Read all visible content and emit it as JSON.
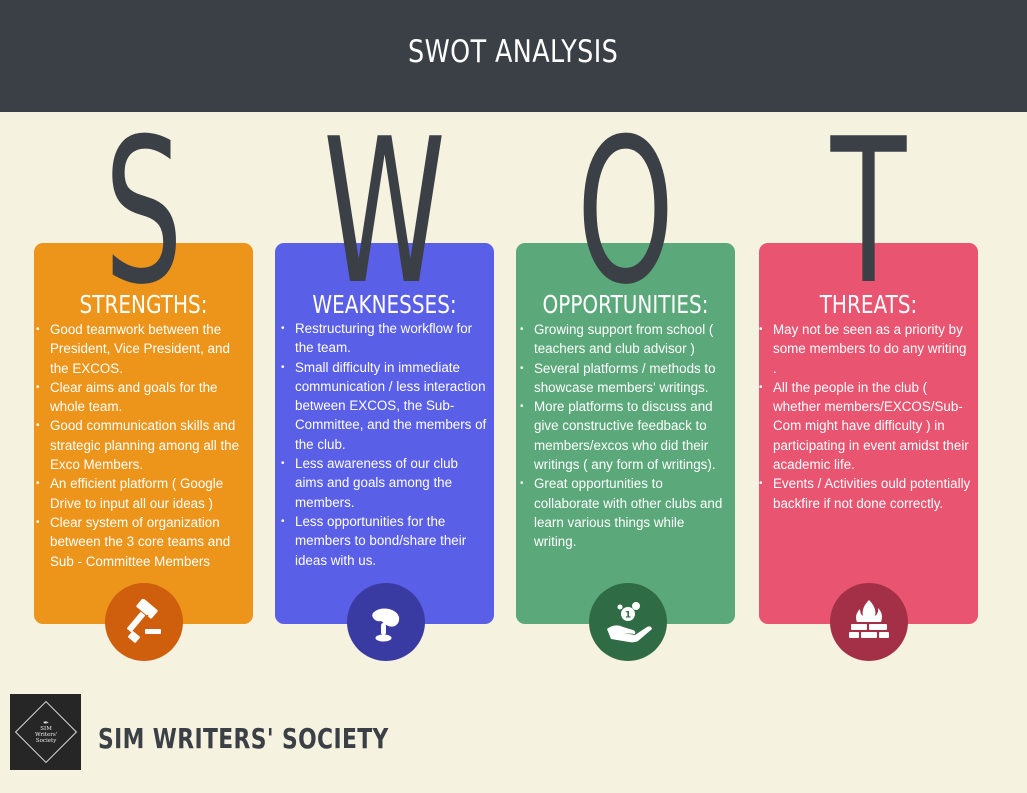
{
  "header": {
    "title": "SWOT ANALYSIS"
  },
  "letters": [
    "S",
    "W",
    "O",
    "T"
  ],
  "cards": [
    {
      "title": "STRENGTHS:",
      "color": "#ec951a",
      "icon_color": "#cf5f0d",
      "icon": "gavel-icon",
      "items": [
        "Good teamwork between the President, Vice President, and the EXCOS.",
        "Clear aims and goals for the whole team.",
        "Good communication skills and strategic planning among all the Exco Members.",
        "An efficient platform ( Google Drive to  input all our ideas )",
        "Clear system of organization between the 3 core teams and Sub - Committee Members"
      ]
    },
    {
      "title": "WEAKNESSES:",
      "color": "#5a5fe8",
      "icon_color": "#3a3ba2",
      "icon": "hand-icon",
      "items": [
        "Restructuring the workflow for the team.",
        "Small difficulty in immediate communication / less interaction between EXCOS, the Sub-Committee, and the members of the club.",
        "Less awareness of our club aims and goals among the members.",
        "Less opportunities for the members to bond/share their ideas with us."
      ]
    },
    {
      "title": "OPPORTUNITIES:",
      "color": "#5ba97a",
      "icon_color": "#2f6c45",
      "icon": "money-hand-icon",
      "items": [
        "Growing support from school ( teachers and club advisor )",
        "Several platforms / methods to showcase members' writings.",
        "More platforms to discuss and give constructive feedback to members/excos who did their writings ( any form of writings).",
        "Great opportunities to collaborate with other clubs and learn various things while writing."
      ]
    },
    {
      "title": "THREATS:",
      "color": "#e95470",
      "icon_color": "#a33046",
      "icon": "firewall-icon",
      "items": [
        "May not be seen as a priority by some members to do any writing .",
        "All the people in the club ( whether members/EXCOS/Sub-Com might have difficulty ) in participating in event amidst their academic life.",
        "Events / Activities ould potentially backfire if not done correctly."
      ]
    }
  ],
  "footer": {
    "logo_text": [
      "SIM",
      "Writers'",
      "Society"
    ],
    "org_name": "SIM WRITERS' SOCIETY"
  }
}
